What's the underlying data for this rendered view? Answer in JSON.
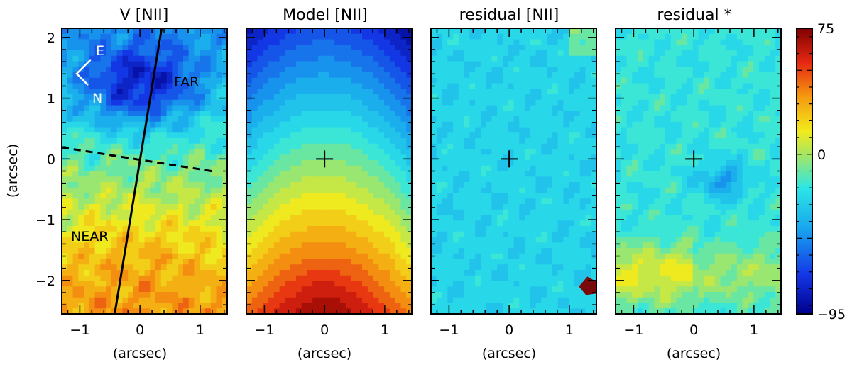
{
  "chart_data": {
    "type": "heatmap",
    "colormap": "blue-cyan-green-yellow-red",
    "colorbar": {
      "min": -95,
      "max": 75,
      "ticks": [
        75,
        0,
        -95
      ],
      "tick_labels": [
        "75",
        "0",
        "−95"
      ]
    },
    "x_axis": {
      "range": [
        -1.3,
        1.45
      ],
      "ticks": [
        -1,
        0,
        1
      ],
      "tick_labels": [
        "−1",
        "0",
        "1"
      ],
      "label": "(arcsec)"
    },
    "y_axis": {
      "range": [
        -2.55,
        2.15
      ],
      "ticks": [
        2,
        1,
        0,
        -1,
        -2
      ],
      "tick_labels": [
        "2",
        "1",
        "0",
        "−1",
        "−2"
      ],
      "label": "(arcsec)"
    },
    "panels": [
      {
        "title": "V [NII]",
        "field": "observed",
        "annotations": [
          "FAR",
          "NEAR",
          "E",
          "N"
        ],
        "major_axis_line": {
          "x": [
            -0.42,
            0.36
          ],
          "y": [
            -2.55,
            2.15
          ]
        },
        "minor_axis_line": {
          "x": [
            -1.3,
            1.25
          ],
          "y": [
            0.19,
            -0.21
          ]
        }
      },
      {
        "title": "Model [NII]",
        "field": "model",
        "center_marker": [
          0,
          0
        ]
      },
      {
        "title": "residual [NII]",
        "field": "residual_gas",
        "center_marker": [
          0,
          0
        ]
      },
      {
        "title": "residual *",
        "field": "residual_stars",
        "center_marker": [
          0,
          0
        ]
      }
    ]
  }
}
